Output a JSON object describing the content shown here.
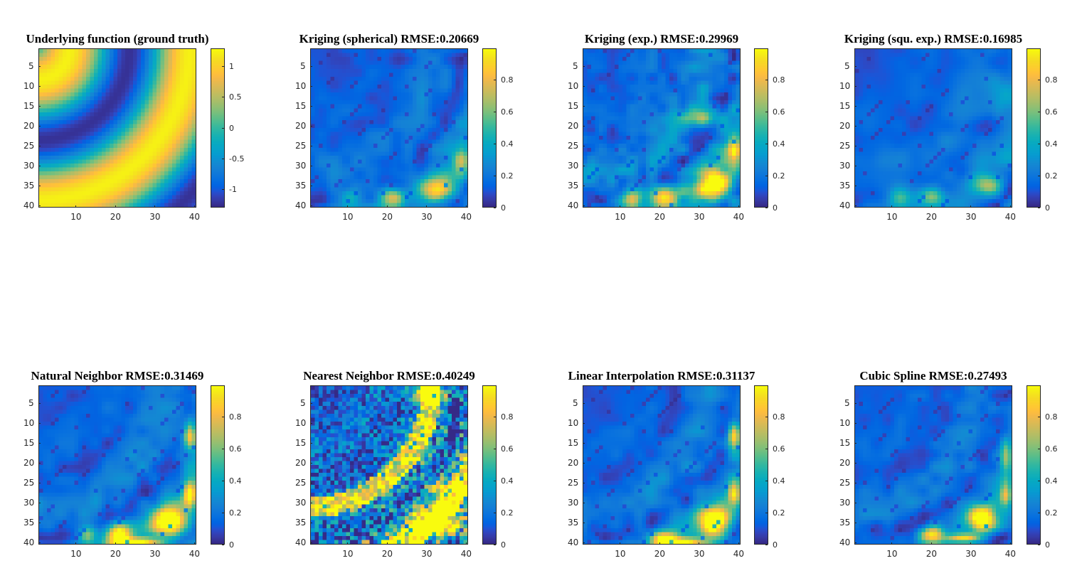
{
  "figure": {
    "colormap": "parula"
  },
  "chart_data": [
    {
      "type": "heatmap",
      "title": "Underlying function (ground truth)",
      "pattern": "truth",
      "x_ticks": [
        10,
        20,
        30,
        40
      ],
      "y_ticks": [
        5,
        10,
        15,
        20,
        25,
        30,
        35,
        40
      ],
      "xlim": [
        0.5,
        40.5
      ],
      "ylim": [
        0.5,
        40.5
      ],
      "clim": [
        -1.3,
        1.3
      ],
      "colorbar_ticks": [
        {
          "value": 1,
          "label": "1"
        },
        {
          "value": 0.5,
          "label": "0.5"
        },
        {
          "value": 0,
          "label": "0"
        },
        {
          "value": -0.5,
          "label": "-0.5"
        },
        {
          "value": -1,
          "label": "-1"
        }
      ]
    },
    {
      "type": "heatmap",
      "title": "Kriging (spherical) RMSE:0.20669",
      "pattern": "kriging-spherical",
      "x_ticks": [
        10,
        20,
        30,
        40
      ],
      "y_ticks": [
        5,
        10,
        15,
        20,
        25,
        30,
        35,
        40
      ],
      "xlim": [
        0.5,
        40.5
      ],
      "ylim": [
        0.5,
        40.5
      ],
      "clim": [
        0,
        1
      ],
      "colorbar_ticks": [
        {
          "value": 0.8,
          "label": "0.8"
        },
        {
          "value": 0.6,
          "label": "0.6"
        },
        {
          "value": 0.4,
          "label": "0.4"
        },
        {
          "value": 0.2,
          "label": "0.2"
        },
        {
          "value": 0,
          "label": "0"
        }
      ]
    },
    {
      "type": "heatmap",
      "title": "Kriging (exp.) RMSE:0.29969",
      "pattern": "kriging-exp",
      "x_ticks": [
        10,
        20,
        30,
        40
      ],
      "y_ticks": [
        5,
        10,
        15,
        20,
        25,
        30,
        35,
        40
      ],
      "xlim": [
        0.5,
        40.5
      ],
      "ylim": [
        0.5,
        40.5
      ],
      "clim": [
        0,
        1
      ],
      "colorbar_ticks": [
        {
          "value": 0.8,
          "label": "0.8"
        },
        {
          "value": 0.6,
          "label": "0.6"
        },
        {
          "value": 0.4,
          "label": "0.4"
        },
        {
          "value": 0.2,
          "label": "0.2"
        },
        {
          "value": 0,
          "label": "0"
        }
      ]
    },
    {
      "type": "heatmap",
      "title": "Kriging (squ. exp.) RMSE:0.16985",
      "pattern": "kriging-squexp",
      "x_ticks": [
        10,
        20,
        30,
        40
      ],
      "y_ticks": [
        5,
        10,
        15,
        20,
        25,
        30,
        35,
        40
      ],
      "xlim": [
        0.5,
        40.5
      ],
      "ylim": [
        0.5,
        40.5
      ],
      "clim": [
        0,
        1
      ],
      "colorbar_ticks": [
        {
          "value": 0.8,
          "label": "0.8"
        },
        {
          "value": 0.6,
          "label": "0.6"
        },
        {
          "value": 0.4,
          "label": "0.4"
        },
        {
          "value": 0.2,
          "label": "0.2"
        },
        {
          "value": 0,
          "label": "0"
        }
      ]
    },
    {
      "type": "heatmap",
      "title": "Natural Neighbor RMSE:0.31469",
      "pattern": "natural-neighbor",
      "x_ticks": [
        10,
        20,
        30,
        40
      ],
      "y_ticks": [
        5,
        10,
        15,
        20,
        25,
        30,
        35,
        40
      ],
      "xlim": [
        0.5,
        40.5
      ],
      "ylim": [
        0.5,
        40.5
      ],
      "clim": [
        0,
        1
      ],
      "colorbar_ticks": [
        {
          "value": 0.8,
          "label": "0.8"
        },
        {
          "value": 0.6,
          "label": "0.6"
        },
        {
          "value": 0.4,
          "label": "0.4"
        },
        {
          "value": 0.2,
          "label": "0.2"
        },
        {
          "value": 0,
          "label": "0"
        }
      ]
    },
    {
      "type": "heatmap",
      "title": "Nearest Neighbor RMSE:0.40249",
      "pattern": "nearest-neighbor",
      "x_ticks": [
        10,
        20,
        30,
        40
      ],
      "y_ticks": [
        5,
        10,
        15,
        20,
        25,
        30,
        35,
        40
      ],
      "xlim": [
        0.5,
        40.5
      ],
      "ylim": [
        0.5,
        40.5
      ],
      "clim": [
        0,
        1
      ],
      "colorbar_ticks": [
        {
          "value": 0.8,
          "label": "0.8"
        },
        {
          "value": 0.6,
          "label": "0.6"
        },
        {
          "value": 0.4,
          "label": "0.4"
        },
        {
          "value": 0.2,
          "label": "0.2"
        },
        {
          "value": 0,
          "label": "0"
        }
      ]
    },
    {
      "type": "heatmap",
      "title": "Linear Interpolation RMSE:0.31137",
      "pattern": "linear",
      "x_ticks": [
        10,
        20,
        30,
        40
      ],
      "y_ticks": [
        5,
        10,
        15,
        20,
        25,
        30,
        35,
        40
      ],
      "xlim": [
        0.5,
        40.5
      ],
      "ylim": [
        0.5,
        40.5
      ],
      "clim": [
        0,
        1
      ],
      "colorbar_ticks": [
        {
          "value": 0.8,
          "label": "0.8"
        },
        {
          "value": 0.6,
          "label": "0.6"
        },
        {
          "value": 0.4,
          "label": "0.4"
        },
        {
          "value": 0.2,
          "label": "0.2"
        },
        {
          "value": 0,
          "label": "0"
        }
      ]
    },
    {
      "type": "heatmap",
      "title": "Cubic Spline RMSE:0.27493",
      "pattern": "cubic-spline",
      "x_ticks": [
        10,
        20,
        30,
        40
      ],
      "y_ticks": [
        5,
        10,
        15,
        20,
        25,
        30,
        35,
        40
      ],
      "xlim": [
        0.5,
        40.5
      ],
      "ylim": [
        0.5,
        40.5
      ],
      "clim": [
        0,
        1
      ],
      "colorbar_ticks": [
        {
          "value": 0.8,
          "label": "0.8"
        },
        {
          "value": 0.6,
          "label": "0.6"
        },
        {
          "value": 0.4,
          "label": "0.4"
        },
        {
          "value": 0.2,
          "label": "0.2"
        },
        {
          "value": 0,
          "label": "0"
        }
      ]
    }
  ]
}
